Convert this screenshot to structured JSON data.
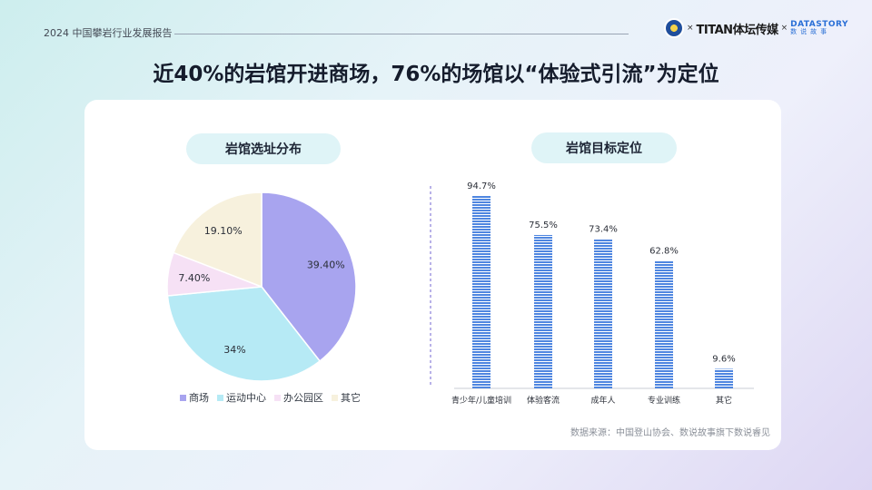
{
  "header": {
    "year_label": "2024 中国攀岩行业发展报告",
    "logo_titan_prefix": "TITAN",
    "logo_titan_name": "体坛传媒",
    "logo_x": "×",
    "logo_ds_top": "DATASTORY",
    "logo_ds_bottom": "数说故事"
  },
  "title": "近40%的岩馆开进商场，76%的场馆以“体验式引流”为定位",
  "source": "数据来源：中国登山协会、数说故事旗下数说睿见",
  "chart_data": [
    {
      "type": "pie",
      "title": "岩馆选址分布",
      "legend_position": "bottom",
      "slices": [
        {
          "label": "商场",
          "value": 39.4,
          "display": "39.40%",
          "color": "#a8a4ef"
        },
        {
          "label": "运动中心",
          "value": 34,
          "display": "34%",
          "color": "#b6eaf5"
        },
        {
          "label": "办公园区",
          "value": 7.4,
          "display": "7.40%",
          "color": "#f6e1f5"
        },
        {
          "label": "其它",
          "value": 19.1,
          "display": "19.10%",
          "color": "#f7f1dd"
        }
      ]
    },
    {
      "type": "bar",
      "title": "岩馆目标定位",
      "categories": [
        "青少年/儿童培训",
        "体验客流",
        "成年人",
        "专业训练",
        "其它"
      ],
      "values": [
        94.7,
        75.5,
        73.4,
        62.8,
        9.6
      ],
      "value_labels": [
        "94.7%",
        "75.5%",
        "73.4%",
        "62.8%",
        "9.6%"
      ],
      "ylim": [
        0,
        100
      ],
      "grid": false,
      "bar_color": "#4f86e0"
    }
  ]
}
